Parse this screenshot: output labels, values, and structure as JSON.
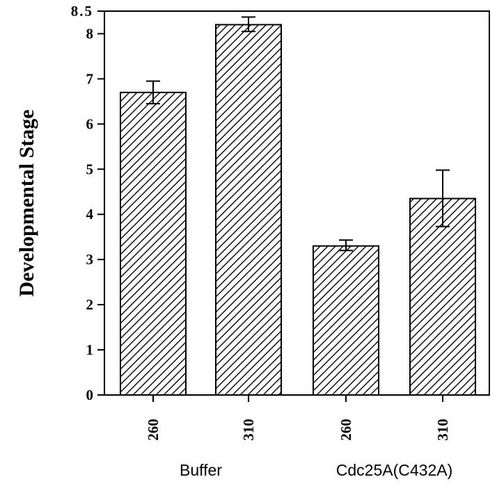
{
  "chart_data": {
    "type": "bar",
    "ylabel": "Developmental Stage",
    "ylim": [
      0,
      8.5
    ],
    "y_ticks": [
      {
        "value": 0,
        "label": "0"
      },
      {
        "value": 1,
        "label": "1"
      },
      {
        "value": 2,
        "label": "2"
      },
      {
        "value": 3,
        "label": "3"
      },
      {
        "value": 4,
        "label": "4"
      },
      {
        "value": 5,
        "label": "5"
      },
      {
        "value": 6,
        "label": "6"
      },
      {
        "value": 7,
        "label": "7"
      },
      {
        "value": 8,
        "label": "8"
      },
      {
        "value": 8.5,
        "label": "8.5"
      }
    ],
    "categories": [
      "260",
      "310",
      "260",
      "310"
    ],
    "groups": [
      {
        "label": "Buffer",
        "categories": [
          0,
          1
        ]
      },
      {
        "label": "Cdc25A(C432A)",
        "categories": [
          2,
          3
        ]
      }
    ],
    "values": [
      6.7,
      8.2,
      3.3,
      4.35
    ],
    "error_low": [
      6.45,
      8.05,
      3.2,
      3.73
    ],
    "error_high": [
      6.95,
      8.37,
      3.43,
      4.98
    ],
    "bar_fill": "hatched",
    "bar_color": "#000000",
    "grid": false
  }
}
